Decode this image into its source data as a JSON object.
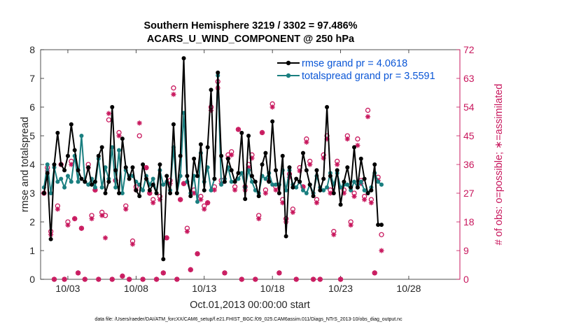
{
  "chart_data": {
    "type": "line",
    "title_line1": "Southern Hemisphere 3219 / 3302 = 97.486%",
    "title_line2": "ACARS_U_WIND_COMPONENT @ 250 hPa",
    "xlabel": "Oct.01,2013 00:00:00 start",
    "ylabel": "rmse and totalspread",
    "y2label": "# of obs: o=possible; ∗=assimilated",
    "footnote": "data file: /Users/raeder/DAI/ATM_forcXX/CAM6_setup/f.e21.FHIST_BGC.f09_025.CAM6assim.011/Diags_NTrS_2013-10/obs_diag_output.nc",
    "xlim": [
      1.0,
      31.75
    ],
    "ylim": [
      0,
      8
    ],
    "y2lim": [
      0,
      72
    ],
    "xtick_values": [
      3,
      8,
      13,
      18,
      23,
      28
    ],
    "xtick_labels": [
      "10/03",
      "10/08",
      "10/13",
      "10/18",
      "10/23",
      "10/28"
    ],
    "ytick_labels": [
      "0",
      "1",
      "2",
      "3",
      "4",
      "5",
      "6",
      "7",
      "8"
    ],
    "y2tick_labels": [
      "0",
      "9",
      "18",
      "27",
      "36",
      "45",
      "54",
      "63",
      "72"
    ],
    "legend": [
      {
        "label": "rmse grand pr = 4.0618",
        "color": "#000000"
      },
      {
        "label": "totalspread grand pr = 3.5591",
        "color": "#1a7f80"
      }
    ],
    "colors": {
      "rmse": "#000000",
      "spread": "#1a7f80",
      "obs": "#c8175d",
      "legend_text": "#0a56d6"
    },
    "x_start": 1.25,
    "x_step": 0.25,
    "series": [
      {
        "name": "rmse",
        "values": [
          3.0,
          3.7,
          1.4,
          4.0,
          5.1,
          4.0,
          3.8,
          4.3,
          5.4,
          4.5,
          3.8,
          3.5,
          3.4,
          3.9,
          3.3,
          3.4,
          4.3,
          4.6,
          3.0,
          3.4,
          6.0,
          3.8,
          3.0,
          4.9,
          3.9,
          3.5,
          3.9,
          3.1,
          2.9,
          4.0,
          3.5,
          3.1,
          3.3,
          3.0,
          4.0,
          0.7,
          3.6,
          3.0,
          5.4,
          3.0,
          4.3,
          7.7,
          3.6,
          2.9,
          4.2,
          3.6,
          4.7,
          3.1,
          4.6,
          6.6,
          3.5,
          7.2,
          4.3,
          3.4,
          4.2,
          3.8,
          3.4,
          3.7,
          5.1,
          2.8,
          5.0,
          3.6,
          3.4,
          2.9,
          4.0,
          4.4,
          3.4,
          5.5,
          3.8,
          3.0,
          4.3,
          1.5,
          3.9,
          3.2,
          3.5,
          3.4,
          4.4,
          3.8,
          3.3,
          2.9,
          3.8,
          3.1,
          3.5,
          6.0,
          3.6,
          3.0,
          3.8,
          2.6,
          3.4,
          3.9,
          3.2,
          4.6,
          3.2,
          4.2,
          3.5,
          3.0,
          3.1,
          4.0,
          1.9,
          1.9
        ]
      },
      {
        "name": "totalspread",
        "values": [
          3.2,
          4.0,
          3.0,
          3.9,
          3.4,
          3.5,
          3.2,
          3.6,
          3.4,
          4.3,
          3.4,
          5.0,
          3.4,
          3.3,
          3.5,
          3.2,
          4.2,
          3.2,
          3.9,
          3.5,
          4.6,
          3.2,
          4.5,
          3.0,
          3.8,
          3.6,
          3.6,
          3.4,
          3.3,
          3.1,
          3.6,
          3.3,
          3.5,
          3.0,
          3.8,
          3.3,
          3.4,
          3.1,
          4.6,
          3.0,
          3.6,
          5.8,
          3.4,
          3.0,
          3.6,
          2.7,
          4.4,
          3.4,
          3.9,
          3.1,
          3.5,
          7.1,
          3.3,
          3.5,
          3.9,
          3.4,
          3.4,
          3.5,
          3.7,
          3.2,
          3.8,
          3.4,
          3.1,
          3.0,
          3.6,
          3.5,
          3.7,
          3.3,
          3.3,
          3.3,
          3.8,
          3.1,
          3.8,
          3.3,
          3.2,
          3.4,
          3.1,
          3.0,
          3.3,
          3.0,
          3.6,
          3.2,
          3.1,
          3.2,
          3.7,
          3.3,
          3.7,
          3.2,
          3.3,
          3.3,
          3.1,
          3.4,
          3.2,
          3.4,
          3.1,
          3.0,
          3.2,
          3.7,
          3.4,
          3.3
        ]
      },
      {
        "name": "obs_possible",
        "values": [
          27,
          35,
          15,
          0,
          23,
          36,
          0,
          18,
          37,
          19,
          2,
          16,
          0,
          36,
          20,
          28,
          0,
          21,
          20,
          50,
          0,
          31,
          46,
          1,
          23,
          0,
          12,
          29,
          45,
          0,
          35,
          27,
          25,
          0,
          26,
          2,
          13,
          31,
          60,
          0,
          25,
          30,
          16,
          3,
          28,
          8,
          26,
          23,
          24,
          54,
          29,
          62,
          31,
          2,
          39,
          40,
          29,
          47,
          0,
          29,
          36,
          39,
          0,
          20,
          46,
          28,
          31,
          55,
          29,
          2,
          25,
          19,
          33,
          22,
          0,
          35,
          29,
          44,
          37,
          0,
          25,
          0,
          39,
          45,
          28,
          15,
          37,
          0,
          28,
          45,
          18,
          27,
          44,
          31,
          26,
          53,
          25,
          2,
          32,
          14
        ]
      },
      {
        "name": "obs_assimilated",
        "values": [
          27,
          34,
          14,
          0,
          22,
          36,
          0,
          17,
          36,
          19,
          2,
          16,
          0,
          35,
          19,
          28,
          0,
          20,
          13,
          52,
          0,
          31,
          45,
          1,
          22,
          0,
          11,
          28,
          49,
          0,
          35,
          27,
          24,
          0,
          25,
          2,
          13,
          30,
          58,
          0,
          25,
          30,
          15,
          3,
          27,
          8,
          25,
          22,
          24,
          53,
          28,
          60,
          30,
          2,
          38,
          39,
          28,
          47,
          0,
          28,
          35,
          38,
          0,
          19,
          46,
          27,
          31,
          54,
          28,
          2,
          24,
          18,
          32,
          21,
          0,
          34,
          29,
          43,
          36,
          0,
          24,
          0,
          38,
          44,
          27,
          14,
          36,
          0,
          27,
          44,
          17,
          26,
          42,
          30,
          25,
          51,
          24,
          2,
          31,
          9
        ]
      }
    ]
  }
}
